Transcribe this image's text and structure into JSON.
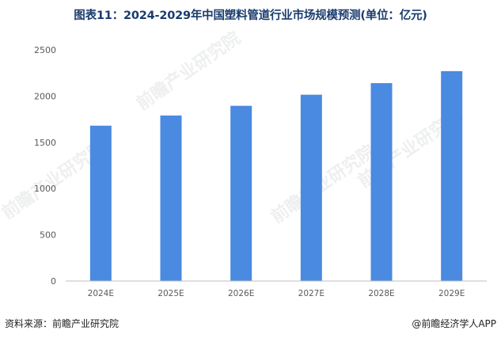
{
  "title": "图表11：2024-2029年中国塑料管道行业市场规模预测(单位：亿元)",
  "source_left": "资料来源：前瞻产业研究院",
  "source_right": "@前瞻经济学人APP",
  "watermark": "前瞻产业研究院",
  "colors": {
    "bar": "#4a8ae0",
    "axis": "#bfbfbf",
    "title": "#1a3c6e"
  },
  "chart_data": {
    "type": "bar",
    "categories": [
      "2024E",
      "2025E",
      "2026E",
      "2027E",
      "2028E",
      "2029E"
    ],
    "values": [
      1680,
      1790,
      1895,
      2015,
      2140,
      2270
    ],
    "ylim": [
      0,
      2500
    ],
    "yticks": [
      0,
      500,
      1000,
      1500,
      2000,
      2500
    ],
    "grid": false,
    "legend": "none"
  }
}
